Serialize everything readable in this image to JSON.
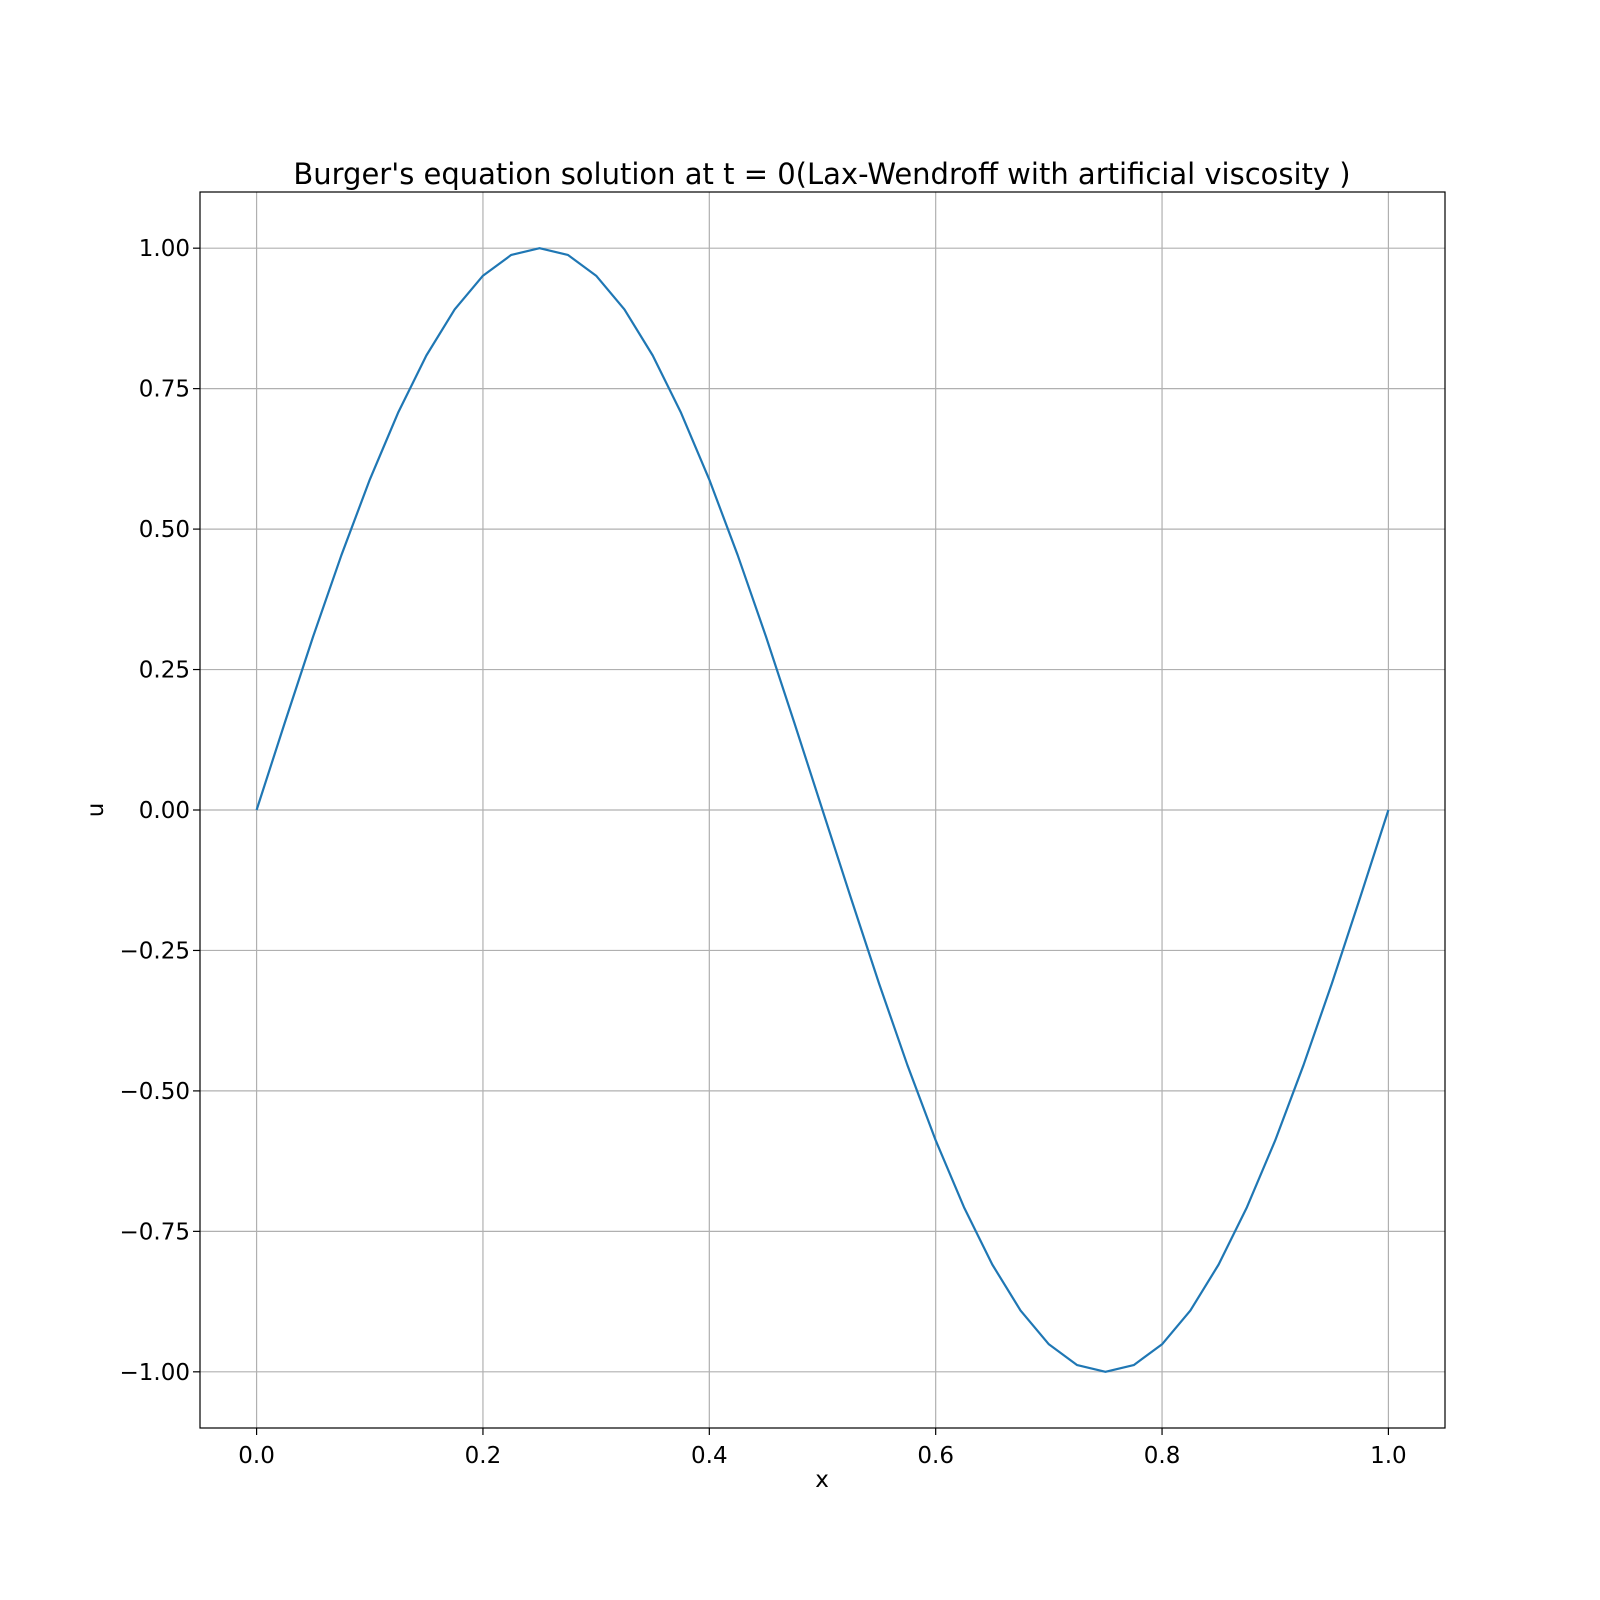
{
  "chart_data": {
    "type": "line",
    "title": "Burger's equation solution at t = 0(Lax-Wendroff with artificial viscosity )",
    "xlabel": "x",
    "ylabel": "u",
    "xlim": [
      -0.05,
      1.05
    ],
    "ylim": [
      -1.1,
      1.1
    ],
    "xticks": [
      0.0,
      0.2,
      0.4,
      0.6,
      0.8,
      1.0
    ],
    "xtick_labels": [
      "0.0",
      "0.2",
      "0.4",
      "0.6",
      "0.8",
      "1.0"
    ],
    "yticks": [
      1.0,
      0.75,
      0.5,
      0.25,
      0.0,
      -0.25,
      -0.5,
      -0.75,
      -1.0
    ],
    "ytick_labels": [
      "1.00",
      "0.75",
      "0.50",
      "0.25",
      "0.00",
      "−0.25",
      "−0.50",
      "−0.75",
      "−1.00"
    ],
    "grid": true,
    "line_color": "#1f77b4",
    "series": [
      {
        "x": [
          0.0,
          0.025,
          0.05,
          0.075,
          0.1,
          0.125,
          0.15,
          0.175,
          0.2,
          0.225,
          0.25,
          0.275,
          0.3,
          0.325,
          0.35,
          0.375,
          0.4,
          0.425,
          0.45,
          0.475,
          0.5,
          0.525,
          0.55,
          0.575,
          0.6,
          0.625,
          0.65,
          0.675,
          0.7,
          0.725,
          0.75,
          0.775,
          0.8,
          0.825,
          0.85,
          0.875,
          0.9,
          0.925,
          0.95,
          0.975,
          1.0
        ],
        "y": [
          0.0,
          0.156,
          0.309,
          0.454,
          0.588,
          0.707,
          0.809,
          0.891,
          0.951,
          0.988,
          1.0,
          0.988,
          0.951,
          0.891,
          0.809,
          0.707,
          0.588,
          0.454,
          0.309,
          0.156,
          0.0,
          -0.156,
          -0.309,
          -0.454,
          -0.588,
          -0.707,
          -0.809,
          -0.891,
          -0.951,
          -0.988,
          -1.0,
          -0.988,
          -0.951,
          -0.891,
          -0.809,
          -0.707,
          -0.588,
          -0.454,
          -0.309,
          -0.156,
          0.0
        ]
      }
    ]
  }
}
